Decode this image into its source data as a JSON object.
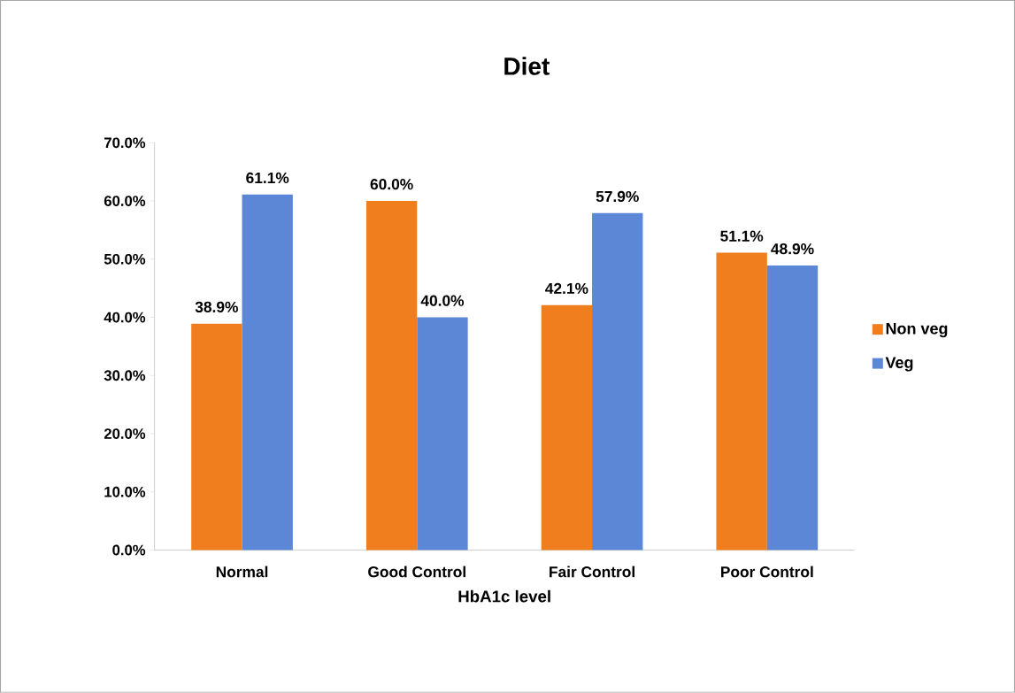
{
  "chart_data": {
    "type": "bar",
    "title": "Diet",
    "xlabel": "HbA1c level",
    "categories": [
      "Normal",
      "Good Control",
      "Fair Control",
      "Poor Control"
    ],
    "series": [
      {
        "name": "Non veg",
        "color": "#f07d1e",
        "values": [
          38.9,
          60.0,
          42.1,
          51.1
        ],
        "value_labels": [
          "38.9%",
          "60.0%",
          "42.1%",
          "51.1%"
        ]
      },
      {
        "name": "Veg",
        "color": "#5b87d6",
        "values": [
          61.1,
          40.0,
          57.9,
          48.9
        ],
        "value_labels": [
          "61.1%",
          "40.0%",
          "57.9%",
          "48.9%"
        ]
      }
    ],
    "ylim": [
      0,
      70
    ],
    "yticks": [
      {
        "value": 0,
        "label": "0.0%"
      },
      {
        "value": 10,
        "label": "10.0%"
      },
      {
        "value": 20,
        "label": "20.0%"
      },
      {
        "value": 30,
        "label": "30.0%"
      },
      {
        "value": 40,
        "label": "40.0%"
      },
      {
        "value": 50,
        "label": "50.0%"
      },
      {
        "value": 60,
        "label": "60.0%"
      },
      {
        "value": 70,
        "label": "70.0%"
      }
    ],
    "legend": "right",
    "grid": false
  }
}
